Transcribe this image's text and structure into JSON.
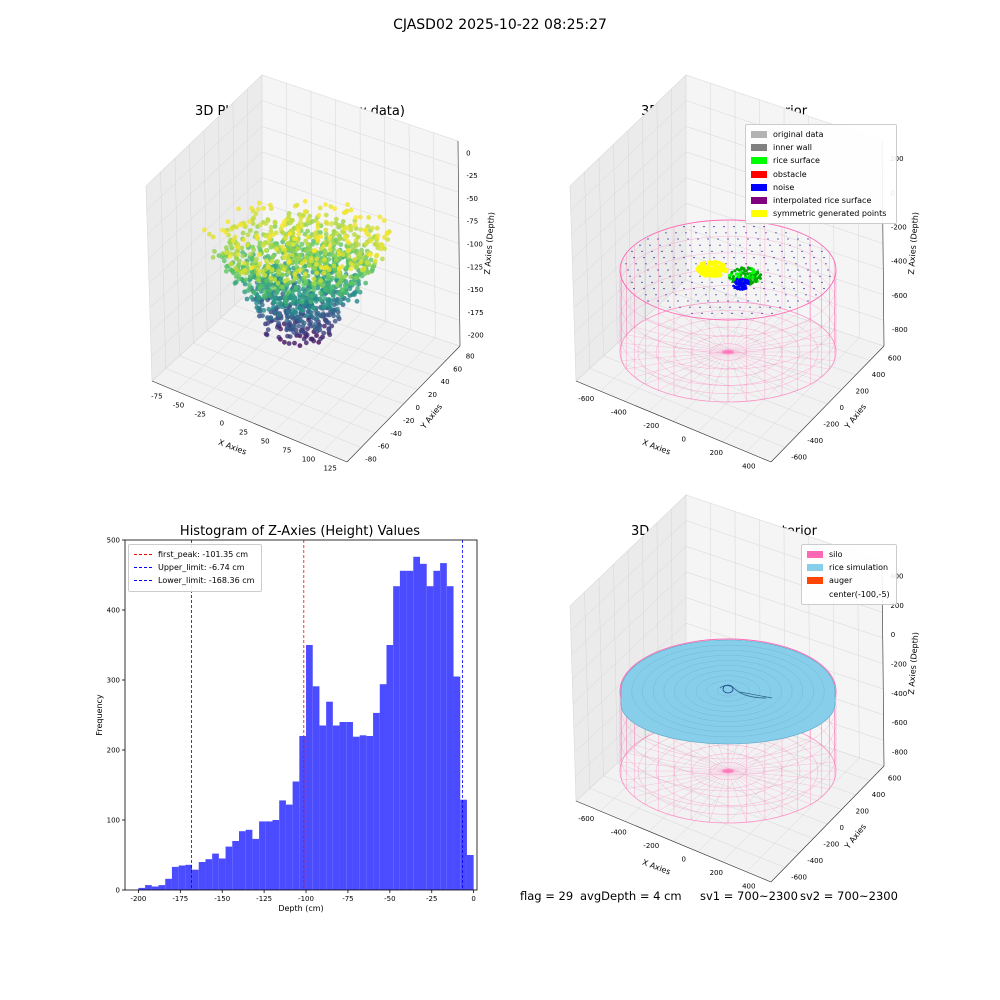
{
  "suptitle": "CJASD02 2025-10-22 08:25:27",
  "chart_data": [
    {
      "type": "scatter",
      "projection": "3d",
      "title": "3D Plot of Silo Interior(row data)",
      "xlabel": "X Axies",
      "ylabel": "Y Axies",
      "zlabel": "Z Axies (Depth)",
      "x_ticks": [
        -75,
        -50,
        -25,
        0,
        25,
        50,
        75,
        100,
        125
      ],
      "y_ticks": [
        -80,
        -60,
        -40,
        -20,
        0,
        20,
        40,
        60,
        80
      ],
      "z_ticks": [
        0,
        -25,
        -50,
        -75,
        -100,
        -125,
        -150,
        -175,
        -200
      ],
      "xlim": [
        -90,
        130
      ],
      "ylim": [
        -90,
        90
      ],
      "zlim": [
        -210,
        10
      ],
      "colormap": "viridis",
      "colorby": "z",
      "grid": true
    },
    {
      "type": "scatter",
      "projection": "3d",
      "title": "3D classify of Silo Interior",
      "xlabel": "X Axies",
      "ylabel": "Y Axies",
      "zlabel": "Z Axies (Depth)",
      "x_ticks": [
        -600,
        -400,
        -200,
        0,
        200,
        400
      ],
      "y_ticks": [
        -600,
        -400,
        -200,
        0,
        200,
        400,
        600
      ],
      "z_ticks": [
        200,
        0,
        -200,
        -400,
        -600,
        -800
      ],
      "legend_position": "upper right",
      "legend": [
        {
          "label": "original data",
          "color": "#b3b3b3"
        },
        {
          "label": "inner wall",
          "color": "#808080"
        },
        {
          "label": "rice surface",
          "color": "#00ff00"
        },
        {
          "label": "obstacle",
          "color": "#ff0000"
        },
        {
          "label": "noise",
          "color": "#0000ff"
        },
        {
          "label": "interpolated rice surface",
          "color": "#800080"
        },
        {
          "label": "symmetric generated points",
          "color": "#ffff00"
        }
      ],
      "wall_color": "#ff69b4",
      "grid": true
    },
    {
      "type": "bar",
      "title": "Histogram of Z-Axies (Height) Values",
      "xlabel": "Depth (cm)",
      "ylabel": "Frequency",
      "xlim": [
        -208,
        2
      ],
      "ylim": [
        0,
        500
      ],
      "x_ticks": [
        -200,
        -175,
        -150,
        -125,
        -100,
        -75,
        -50,
        -25,
        0
      ],
      "y_ticks": [
        0,
        100,
        200,
        300,
        400,
        500
      ],
      "bar_color": "#4b4bff",
      "bin_start": -200,
      "bin_width": 4,
      "values": [
        3,
        7,
        5,
        7,
        16,
        33,
        35,
        36,
        29,
        40,
        44,
        52,
        45,
        62,
        70,
        84,
        86,
        73,
        98,
        98,
        100,
        128,
        122,
        155,
        220,
        350,
        291,
        235,
        269,
        235,
        240,
        240,
        219,
        221,
        220,
        253,
        294,
        350,
        434,
        456,
        456,
        476,
        466,
        434,
        456,
        467,
        434,
        305,
        129,
        50
      ],
      "vlines": [
        {
          "label": "first_peak: -101.35 cm",
          "x": -101.35,
          "color": "#ff0000"
        },
        {
          "label": "Upper_limit: -6.74 cm",
          "x": -6.74,
          "color": "#0000ff"
        },
        {
          "label": "Lower_limit: -168.36 cm",
          "x": -168.36,
          "color": "#0000ff"
        }
      ],
      "legend_position": "upper left"
    },
    {
      "type": "scatter",
      "projection": "3d",
      "title": "3D simulation of Silo Interior",
      "xlabel": "X Axies",
      "ylabel": "Y Axies",
      "zlabel": "Z Axies (Depth)",
      "x_ticks": [
        -600,
        -400,
        -200,
        0,
        200,
        400
      ],
      "y_ticks": [
        -600,
        -400,
        -200,
        0,
        200,
        400,
        600
      ],
      "z_ticks": [
        400,
        200,
        0,
        -200,
        -400,
        -600,
        -800
      ],
      "legend_position": "upper right",
      "legend": [
        {
          "label": "silo",
          "color": "#ff69b4"
        },
        {
          "label": "rice simulation",
          "color": "#87ceeb"
        },
        {
          "label": "auger",
          "color": "#ff4500"
        },
        {
          "label": "center(-100,-5)",
          "color": ""
        }
      ],
      "grid": true
    }
  ],
  "info": {
    "flag": "flag = 29",
    "avg_depth": "avgDepth = 4 cm",
    "sv1": "sv1 = 700~2300",
    "sv2": "sv2 = 700~2300"
  }
}
